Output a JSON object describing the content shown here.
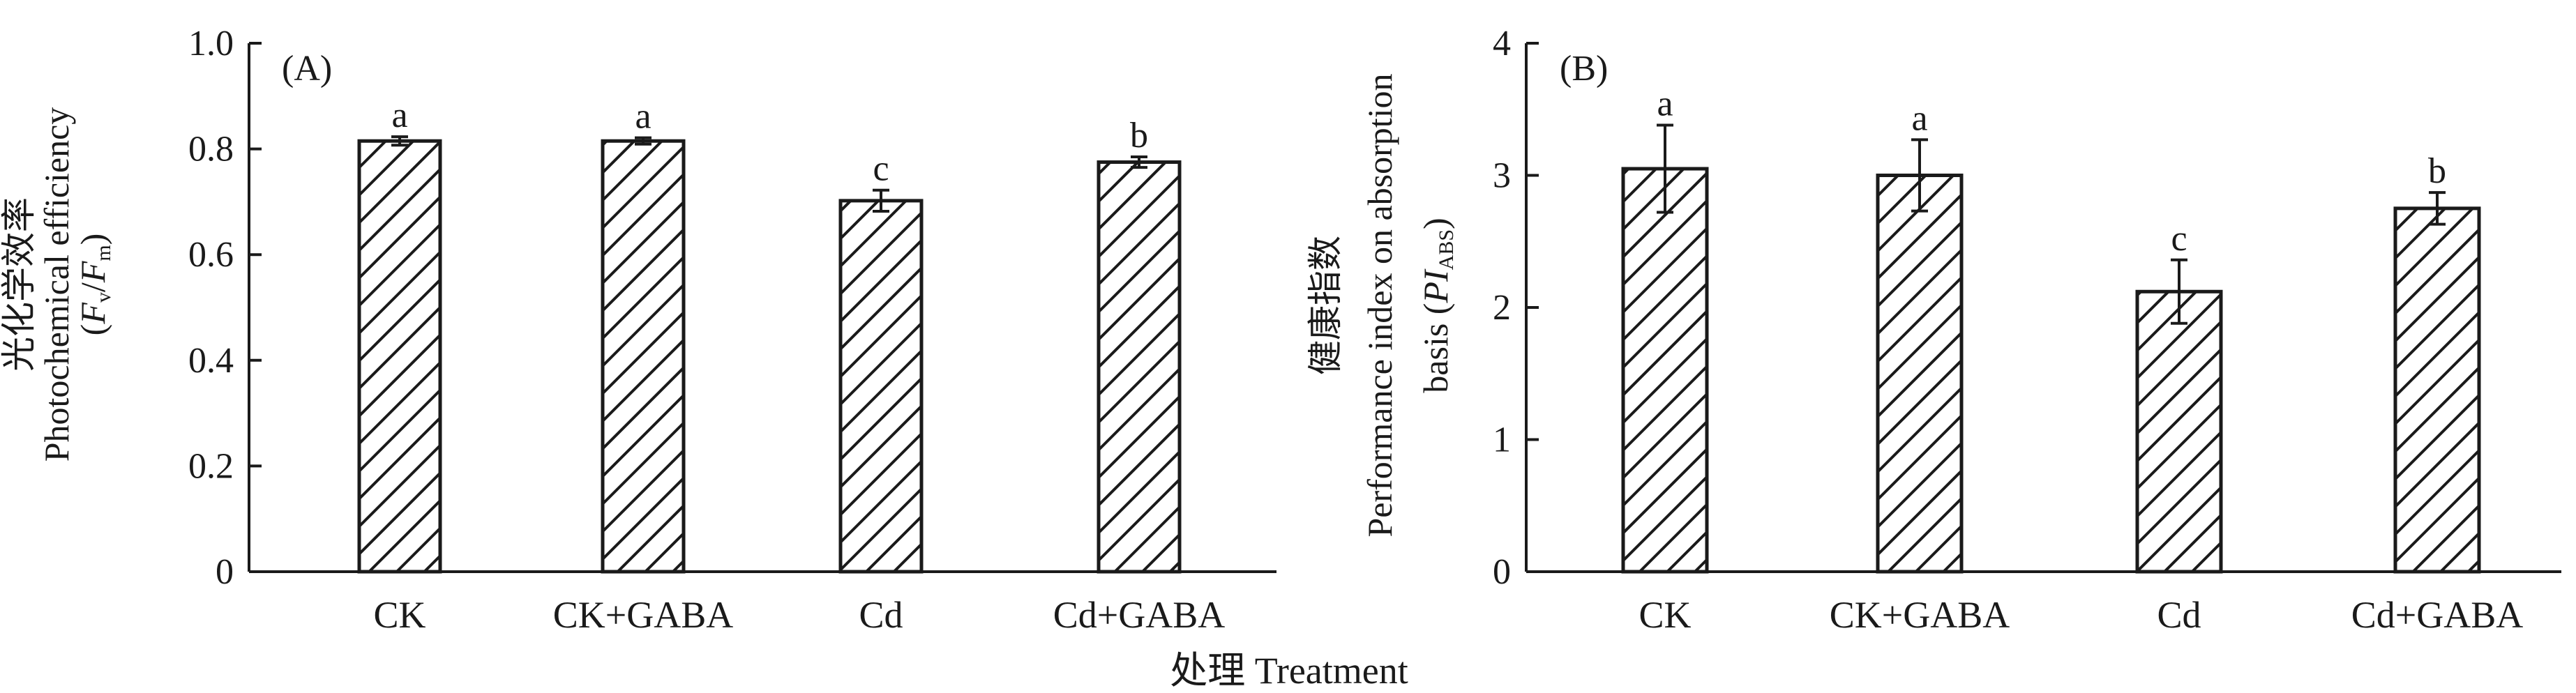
{
  "figure": {
    "shared_xlabel": "处理 Treatment"
  },
  "colors": {
    "axis": "#1a1a1a",
    "bar_fill": "#ffffff",
    "hatch": "#1a1a1a"
  },
  "chart_data": [
    {
      "type": "bar",
      "panel_label": "(A)",
      "categories": [
        "CK",
        "CK+GABA",
        "Cd",
        "Cd+GABA"
      ],
      "values": [
        0.815,
        0.815,
        0.702,
        0.775
      ],
      "errors": [
        0.008,
        0.006,
        0.02,
        0.01
      ],
      "significance": [
        "a",
        "a",
        "c",
        "b"
      ],
      "ylim": [
        0,
        1.0
      ],
      "yticks": [
        0,
        0.2,
        0.4,
        0.6,
        0.8,
        1.0
      ],
      "ytick_labels": [
        "0",
        "0.2",
        "0.4",
        "0.6",
        "0.8",
        "1.0"
      ],
      "ylabel_lines": {
        "line1": "光化学效率",
        "line2": "Photochemical efficiency",
        "line3": {
          "open": "(",
          "F1": "F",
          "sub1": "v",
          "slash": "/",
          "F2": "F",
          "sub2": "m",
          "close": ")"
        }
      },
      "fill": "hatched",
      "error_bars": true
    },
    {
      "type": "bar",
      "panel_label": "(B)",
      "categories": [
        "CK",
        "CK+GABA",
        "Cd",
        "Cd+GABA"
      ],
      "values": [
        3.05,
        3.0,
        2.12,
        2.75
      ],
      "errors": [
        0.33,
        0.27,
        0.24,
        0.12
      ],
      "significance": [
        "a",
        "a",
        "c",
        "b"
      ],
      "ylim": [
        0,
        4
      ],
      "yticks": [
        0,
        1,
        2,
        3,
        4
      ],
      "ytick_labels": [
        "0",
        "1",
        "2",
        "3",
        "4"
      ],
      "ylabel_lines": {
        "line1": "健康指数",
        "line2": "Performance index on absorption",
        "line3": {
          "pre": "basis (",
          "PI": "PI",
          "sub": "ABS",
          "close": ")"
        }
      },
      "fill": "hatched",
      "error_bars": true
    }
  ]
}
